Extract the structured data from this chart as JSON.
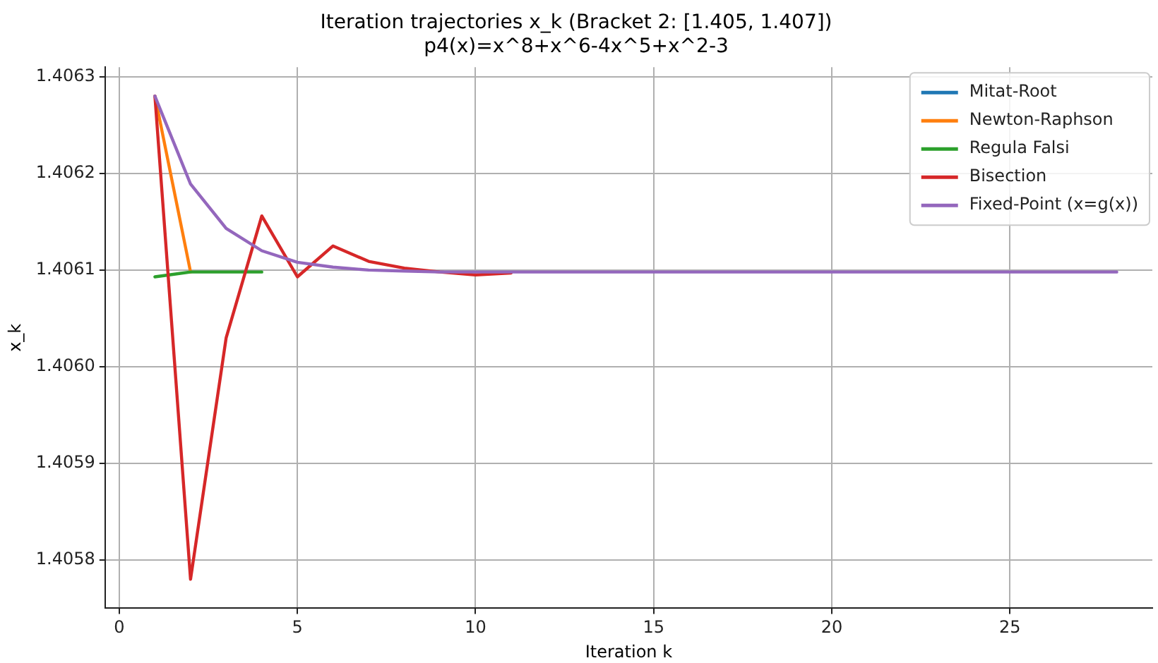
{
  "chart_data": {
    "type": "line",
    "title": "Iteration trajectories x_k (Bracket 2: [1.405, 1.407])",
    "subtitle": "p4(x)=x^8+x^6-4x^5+x^2-3",
    "xlabel": "Iteration k",
    "ylabel": "x_k",
    "xlim": [
      -0.4,
      29
    ],
    "ylim": [
      1.40575,
      1.40631
    ],
    "xticks": [
      0,
      5,
      10,
      15,
      20,
      25
    ],
    "yticks": [
      {
        "value": 1.4058,
        "label": "1.4058"
      },
      {
        "value": 1.4059,
        "label": "1.4059"
      },
      {
        "value": 1.406,
        "label": "1.4060"
      },
      {
        "value": 1.4061,
        "label": "1.4061"
      },
      {
        "value": 1.4062,
        "label": "1.4062"
      },
      {
        "value": 1.4063,
        "label": "1.4063"
      }
    ],
    "grid": true,
    "legend": "top right",
    "marker": "none",
    "line_style": "solid",
    "series": [
      {
        "name": "Mitat-Root",
        "color": "#1f77b4"
      },
      {
        "name": "Newton-Raphson",
        "color": "#ff7f0e",
        "x": [
          1,
          2
        ],
        "values": [
          1.40628,
          1.406098
        ]
      },
      {
        "name": "Regula Falsi",
        "color": "#2ca02c",
        "x": [
          1,
          2,
          3,
          4
        ],
        "values": [
          1.406093,
          1.406098,
          1.406098,
          1.406098
        ]
      },
      {
        "name": "Bisection",
        "color": "#d62728",
        "x": [
          1,
          2,
          3,
          4,
          5,
          6,
          7,
          8,
          9,
          10,
          11
        ],
        "values": [
          1.40628,
          1.40578,
          1.40603,
          1.406156,
          1.406093,
          1.406125,
          1.406109,
          1.406102,
          1.406098,
          1.406095,
          1.406097
        ]
      },
      {
        "name": "Fixed-Point (x=g(x))",
        "color": "#9467bd",
        "x": [
          1,
          2,
          3,
          4,
          5,
          6,
          7,
          8,
          9,
          10,
          11,
          12,
          13,
          14,
          15,
          16,
          17,
          18,
          19,
          20,
          21,
          22,
          23,
          24,
          25,
          26,
          27,
          28
        ],
        "values": [
          1.40628,
          1.406189,
          1.406143,
          1.40612,
          1.406108,
          1.406103,
          1.4061,
          1.406099,
          1.406098,
          1.406098,
          1.406098,
          1.406098,
          1.406098,
          1.406098,
          1.406098,
          1.406098,
          1.406098,
          1.406098,
          1.406098,
          1.406098,
          1.406098,
          1.406098,
          1.406098,
          1.406098,
          1.406098,
          1.406098,
          1.406098,
          1.406098
        ]
      }
    ]
  }
}
